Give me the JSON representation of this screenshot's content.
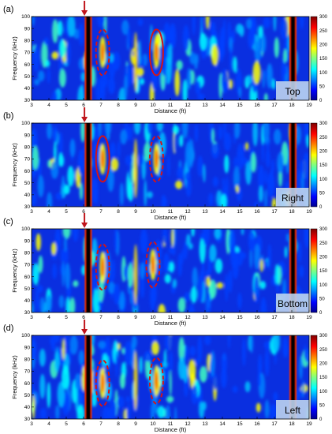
{
  "chart_data": [
    {
      "type": "heatmap",
      "panel_label": "(a)",
      "inset_label": "Top",
      "xlabel": "Distance (ft)",
      "ylabel": "Frequency (kHz)",
      "xlim": [
        3,
        19
      ],
      "ylim": [
        30,
        100
      ],
      "xticks": [
        3,
        4,
        5,
        6,
        7,
        8,
        9,
        10,
        11,
        12,
        13,
        14,
        15,
        16,
        17,
        18,
        19
      ],
      "yticks": [
        30,
        40,
        50,
        60,
        70,
        80,
        90,
        100
      ],
      "colorbar": {
        "min": 0,
        "max": 300,
        "ticks": [
          0,
          50,
          100,
          150,
          200,
          250,
          300
        ]
      },
      "arrow_x": 6.05,
      "saturated_bands": [
        6.2,
        18.0
      ],
      "ellipses": [
        {
          "x": 7.1,
          "y": 70,
          "style": "dashed"
        },
        {
          "x": 10.2,
          "y": 70,
          "style": "solid"
        }
      ]
    },
    {
      "type": "heatmap",
      "panel_label": "(b)",
      "inset_label": "Right",
      "xlabel": "Distance (ft)",
      "ylabel": "Frequency (kHz)",
      "xlim": [
        3,
        19
      ],
      "ylim": [
        30,
        100
      ],
      "xticks": [
        3,
        4,
        5,
        6,
        7,
        8,
        9,
        10,
        11,
        12,
        13,
        14,
        15,
        16,
        17,
        18,
        19
      ],
      "yticks": [
        30,
        40,
        50,
        60,
        70,
        80,
        90,
        100
      ],
      "colorbar": {
        "min": 0,
        "max": 300,
        "ticks": [
          0,
          50,
          100,
          150,
          200,
          250,
          300
        ]
      },
      "arrow_x": 6.05,
      "saturated_bands": [
        6.2,
        18.0
      ],
      "ellipses": [
        {
          "x": 7.1,
          "y": 70,
          "style": "solid"
        },
        {
          "x": 10.2,
          "y": 70,
          "style": "dashed"
        }
      ]
    },
    {
      "type": "heatmap",
      "panel_label": "(c)",
      "inset_label": "Bottom",
      "xlabel": "Distance (ft)",
      "ylabel": "Frequency (kHz)",
      "xlim": [
        3,
        19
      ],
      "ylim": [
        30,
        100
      ],
      "xticks": [
        3,
        4,
        5,
        6,
        7,
        8,
        9,
        10,
        11,
        12,
        13,
        14,
        15,
        16,
        17,
        18,
        19
      ],
      "yticks": [
        30,
        40,
        50,
        60,
        70,
        80,
        90,
        100
      ],
      "colorbar": {
        "min": 0,
        "max": 300,
        "ticks": [
          0,
          50,
          100,
          150,
          200,
          250,
          300
        ]
      },
      "arrow_x": 6.05,
      "saturated_bands": [
        6.2,
        18.0
      ],
      "ellipses": [
        {
          "x": 7.1,
          "y": 68,
          "style": "dashed"
        },
        {
          "x": 10.0,
          "y": 70,
          "style": "dashed"
        }
      ]
    },
    {
      "type": "heatmap",
      "panel_label": "(d)",
      "inset_label": "Left",
      "xlabel": "Distance (ft)",
      "ylabel": "Frequency (kHz)",
      "xlim": [
        3,
        19
      ],
      "ylim": [
        30,
        100
      ],
      "xticks": [
        3,
        4,
        5,
        6,
        7,
        8,
        9,
        10,
        11,
        12,
        13,
        14,
        15,
        16,
        17,
        18,
        19
      ],
      "yticks": [
        30,
        40,
        50,
        60,
        70,
        80,
        90,
        100
      ],
      "colorbar": {
        "min": 0,
        "max": 300,
        "ticks": [
          0,
          50,
          100,
          150,
          200,
          250,
          300
        ]
      },
      "arrow_x": 6.05,
      "saturated_bands": [
        6.2,
        18.0
      ],
      "ellipses": [
        {
          "x": 7.1,
          "y": 60,
          "style": "dashed"
        },
        {
          "x": 10.2,
          "y": 62,
          "style": "dashed"
        }
      ]
    }
  ],
  "colors": {
    "arrow": "#c0151b",
    "ellipse": "#d2141a",
    "inset_box": "#bcd3ee",
    "colormap": [
      "#00008f",
      "#0000ff",
      "#0080ff",
      "#00ffff",
      "#80ff80",
      "#ffff00",
      "#ff8000",
      "#ff0000",
      "#800000"
    ]
  }
}
